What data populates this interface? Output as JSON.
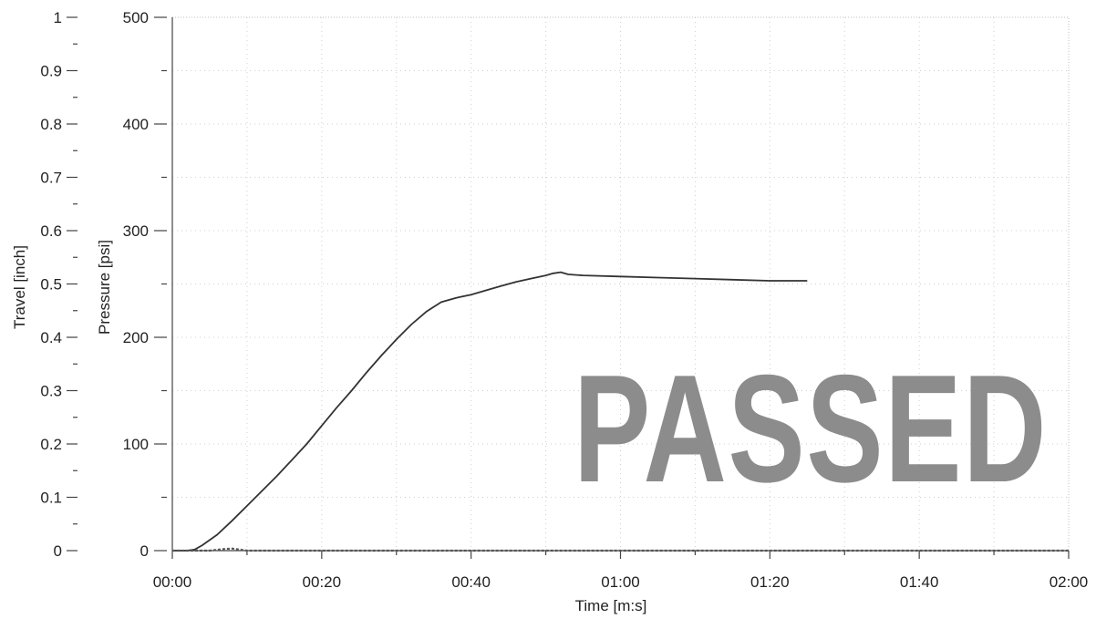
{
  "chart_data": {
    "type": "line",
    "xlabel": "Time [m:s]",
    "ylabel_pressure": "Pressure [psi]",
    "ylabel_travel": "Travel [inch]",
    "x_ticks": [
      "00:00",
      "00:20",
      "00:40",
      "01:00",
      "01:20",
      "01:40",
      "02:00"
    ],
    "xlim_seconds": [
      0,
      120
    ],
    "pressure_ticks": [
      "0",
      "100",
      "200",
      "300",
      "400",
      "500"
    ],
    "pressure_lim": [
      0,
      500
    ],
    "travel_ticks": [
      "0",
      "0.1",
      "0.2",
      "0.3",
      "0.4",
      "0.5",
      "0.6",
      "0.7",
      "0.8",
      "0.9",
      "1"
    ],
    "travel_lim": [
      0,
      1
    ],
    "grid": true,
    "series": [
      {
        "axis": "pressure",
        "color": "#333333",
        "x": [
          0,
          2,
          3,
          4,
          6,
          8,
          10,
          12,
          14,
          16,
          18,
          20,
          22,
          24,
          26,
          28,
          30,
          32,
          34,
          36,
          38,
          40,
          42,
          44,
          46,
          48,
          50,
          51,
          52,
          53,
          55,
          60,
          65,
          70,
          75,
          80,
          85
        ],
        "y": [
          0,
          0,
          1,
          5,
          15,
          28,
          42,
          56,
          70,
          85,
          100,
          117,
          134,
          150,
          167,
          183,
          198,
          212,
          224,
          233,
          237,
          240,
          244,
          248,
          252,
          255,
          258,
          260,
          261,
          259,
          258,
          257,
          256,
          255,
          254,
          253,
          253
        ]
      },
      {
        "axis": "travel",
        "color": "#555555",
        "x": [
          0,
          5,
          7,
          8,
          10,
          20,
          40,
          60,
          85,
          120
        ],
        "y": [
          0,
          0,
          0.003,
          0.004,
          0,
          0,
          0,
          0,
          0,
          0
        ]
      }
    ],
    "stamp_text": "PASSED"
  }
}
